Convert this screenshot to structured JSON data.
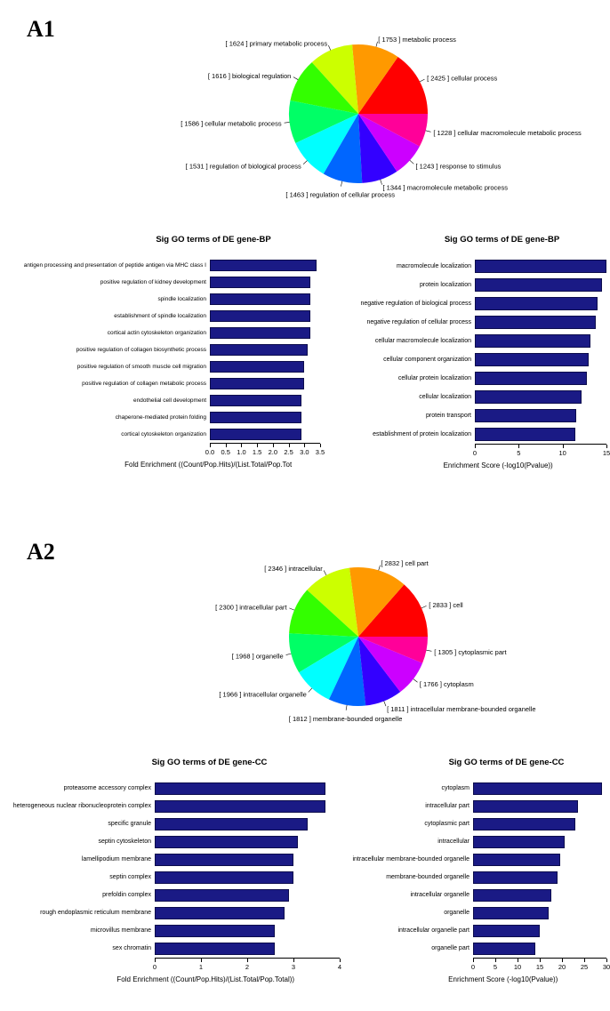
{
  "figure": {
    "panels": [
      {
        "label": "A1"
      },
      {
        "label": "A2"
      }
    ]
  },
  "chart_data": [
    {
      "type": "pie",
      "panel": "A1",
      "direction": "counterclockwise",
      "start_angle_deg": 0,
      "label_format": "[ count ] label",
      "slices": [
        {
          "label": "cellular process",
          "count": 2425,
          "color": "#FF0000"
        },
        {
          "label": "metabolic process",
          "count": 1753,
          "color": "#FF9900"
        },
        {
          "label": "primary metabolic process",
          "count": 1624,
          "color": "#CCFF00"
        },
        {
          "label": "biological regulation",
          "count": 1616,
          "color": "#33FF00"
        },
        {
          "label": "cellular metabolic process",
          "count": 1586,
          "color": "#00FF66"
        },
        {
          "label": "regulation of biological process",
          "count": 1531,
          "color": "#00FFFF"
        },
        {
          "label": "regulation of cellular process",
          "count": 1463,
          "color": "#0066FF"
        },
        {
          "label": "macromolecule metabolic process",
          "count": 1344,
          "color": "#3300FF"
        },
        {
          "label": "response to stimulus",
          "count": 1243,
          "color": "#CC00FF"
        },
        {
          "label": "cellular macromolecule metabolic process",
          "count": 1228,
          "color": "#FF0099"
        }
      ]
    },
    {
      "type": "bar",
      "orientation": "horizontal",
      "panel": "A1",
      "title": "Sig GO terms of DE gene-BP",
      "xlabel": "Fold Enrichment ((Count/Pop.Hits)/(List.Total/Pop.Tot",
      "bar_color": "#1a1a85",
      "xlim": [
        0,
        3.5
      ],
      "xticks": [
        0,
        0.5,
        1,
        1.5,
        2,
        2.5,
        3,
        3.5
      ],
      "xtick_labels": [
        "0.0",
        "0.5",
        "1.0",
        "1.5",
        "2.0",
        "2.5",
        "3.0",
        "3.5"
      ],
      "categories": [
        "antigen processing and presentation of peptide antigen via MHC class I",
        "positive regulation of kidney development",
        "spindle localization",
        "establishment of spindle localization",
        "cortical actin cytoskeleton organization",
        "positive regulation of collagen biosynthetic process",
        "positive regulation of smooth muscle cell migration",
        "positive regulation of collagen metabolic process",
        "endothelial cell development",
        "chaperone-mediated protein folding",
        "cortical cytoskeleton organization"
      ],
      "values": [
        3.4,
        3.2,
        3.2,
        3.2,
        3.2,
        3.1,
        3.0,
        3.0,
        2.9,
        2.9,
        2.9
      ]
    },
    {
      "type": "bar",
      "orientation": "horizontal",
      "panel": "A1",
      "title": "Sig GO terms of DE gene-BP",
      "xlabel": "Enrichment Score (-log10(Pvalue))",
      "bar_color": "#1a1a85",
      "xlim": [
        0,
        15
      ],
      "xticks": [
        0,
        5,
        10,
        15
      ],
      "xtick_labels": [
        "0",
        "5",
        "10",
        "15"
      ],
      "categories": [
        "macromolecule localization",
        "protein localization",
        "negative regulation of biological process",
        "negative regulation of cellular process",
        "cellular macromolecule localization",
        "cellular component organization",
        "cellular protein localization",
        "cellular localization",
        "protein transport",
        "establishment of protein localization"
      ],
      "values": [
        15,
        14.5,
        14,
        13.8,
        13.2,
        13,
        12.8,
        12.2,
        11.6,
        11.5
      ]
    },
    {
      "type": "pie",
      "panel": "A2",
      "direction": "counterclockwise",
      "start_angle_deg": 0,
      "label_format": "[ count ] label",
      "slices": [
        {
          "label": "cell",
          "count": 2833,
          "color": "#FF0000"
        },
        {
          "label": "cell part",
          "count": 2832,
          "color": "#FF9900"
        },
        {
          "label": "intracellular",
          "count": 2346,
          "color": "#CCFF00"
        },
        {
          "label": "intracellular part",
          "count": 2300,
          "color": "#33FF00"
        },
        {
          "label": "organelle",
          "count": 1968,
          "color": "#00FF66"
        },
        {
          "label": "intracellular organelle",
          "count": 1966,
          "color": "#00FFFF"
        },
        {
          "label": "membrane-bounded organelle",
          "count": 1812,
          "color": "#0066FF"
        },
        {
          "label": "intracellular membrane-bounded organelle",
          "count": 1811,
          "color": "#3300FF"
        },
        {
          "label": "cytoplasm",
          "count": 1766,
          "color": "#CC00FF"
        },
        {
          "label": "cytoplasmic part",
          "count": 1305,
          "color": "#FF0099"
        }
      ]
    },
    {
      "type": "bar",
      "orientation": "horizontal",
      "panel": "A2",
      "title": "Sig GO terms of DE gene-CC",
      "xlabel": "Fold Enrichment ((Count/Pop.Hits)/(List.Total/Pop.Total))",
      "bar_color": "#1a1a85",
      "xlim": [
        0,
        4
      ],
      "xticks": [
        0,
        1,
        2,
        3,
        4
      ],
      "xtick_labels": [
        "0",
        "1",
        "2",
        "3",
        "4"
      ],
      "categories": [
        "proteasome accessory complex",
        "heterogeneous nuclear ribonucleoprotein complex",
        "specific granule",
        "septin cytoskeleton",
        "lamellipodium membrane",
        "septin complex",
        "prefoldin complex",
        "rough endoplasmic reticulum membrane",
        "microvillus membrane",
        "sex chromatin"
      ],
      "values": [
        3.7,
        3.7,
        3.3,
        3.1,
        3.0,
        3.0,
        2.9,
        2.8,
        2.6,
        2.6
      ]
    },
    {
      "type": "bar",
      "orientation": "horizontal",
      "panel": "A2",
      "title": "Sig GO terms of DE gene-CC",
      "xlabel": "Enrichment Score (-log10(Pvalue))",
      "bar_color": "#1a1a85",
      "xlim": [
        0,
        30
      ],
      "xticks": [
        0,
        5,
        10,
        15,
        20,
        25,
        30
      ],
      "xtick_labels": [
        "0",
        "5",
        "10",
        "15",
        "20",
        "25",
        "30"
      ],
      "categories": [
        "cytoplasm",
        "intracellular part",
        "cytoplasmic part",
        "intracellular",
        "intracellular membrane-bounded organelle",
        "membrane-bounded organelle",
        "intracellular organelle",
        "organelle",
        "intracellular organelle part",
        "organelle part"
      ],
      "values": [
        29,
        23.5,
        23,
        20.5,
        19.5,
        19,
        17.5,
        17,
        15,
        14
      ]
    }
  ]
}
